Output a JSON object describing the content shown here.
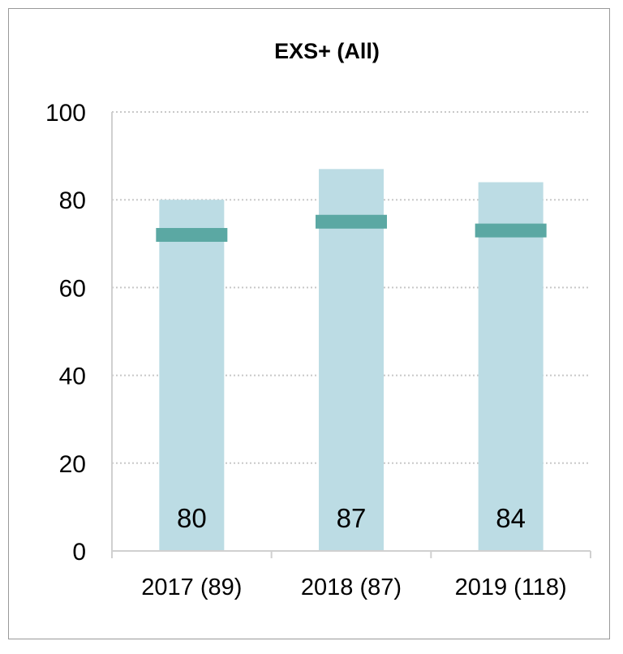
{
  "chart_data": {
    "type": "bar",
    "title": "EXS+ (All)",
    "xlabel": "",
    "ylabel": "",
    "ylim": [
      0,
      100
    ],
    "yticks": [
      0,
      20,
      40,
      60,
      80,
      100
    ],
    "grid": true,
    "categories": [
      "2017 (89)",
      "2018 (87)",
      "2019 (118)"
    ],
    "values": [
      80,
      87,
      84
    ],
    "value_labels": [
      "80",
      "87",
      "84"
    ],
    "markers": [
      72,
      75,
      73
    ],
    "colors": {
      "bar": "#bcdce4",
      "marker": "#5ba8a3",
      "grid": "#c8c8c8",
      "axis": "#d0d0d0"
    }
  }
}
